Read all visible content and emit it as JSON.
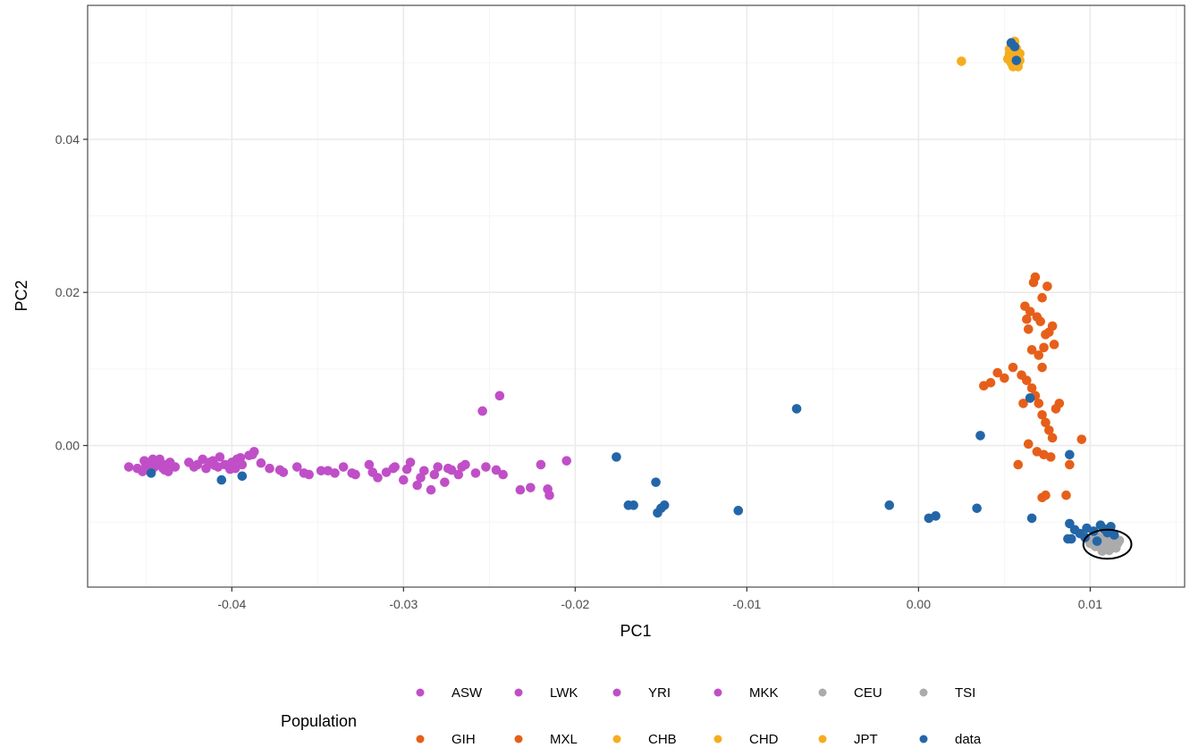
{
  "chart_data": {
    "type": "scatter",
    "title": "",
    "xlabel": "PC1",
    "ylabel": "PC2",
    "xlim": [
      -0.0484,
      0.0155
    ],
    "ylim": [
      -0.0185,
      0.0575
    ],
    "x_ticks": [
      -0.04,
      -0.03,
      -0.02,
      -0.01,
      0.0,
      0.01
    ],
    "x_tick_labels": [
      "-0.04",
      "-0.03",
      "-0.02",
      "-0.01",
      "0.00",
      "0.01"
    ],
    "x_minor_ticks": [
      -0.045,
      -0.035,
      -0.025,
      -0.015,
      -0.005,
      0.005,
      0.015
    ],
    "y_ticks": [
      0.0,
      0.02,
      0.04
    ],
    "y_tick_labels": [
      "0.00",
      "0.02",
      "0.04"
    ],
    "y_minor_ticks": [
      -0.01,
      0.01,
      0.03,
      0.05
    ],
    "grid": true,
    "legend_title": "Population",
    "legend_position": "bottom",
    "legend_rows": [
      [
        "ASW",
        "LWK",
        "YRI",
        "MKK",
        "CEU",
        "TSI"
      ],
      [
        "GIH",
        "MXL",
        "CHB",
        "CHD",
        "JPT",
        "data"
      ]
    ],
    "colors": {
      "ASW": "#c04fc7",
      "LWK": "#c04fc7",
      "YRI": "#c04fc7",
      "MKK": "#c04fc7",
      "CEU": "#ababab",
      "TSI": "#ababab",
      "GIH": "#e65f1a",
      "MXL": "#e65f1a",
      "CHB": "#f5ad1e",
      "CHD": "#f5ad1e",
      "JPT": "#f5ad1e",
      "data": "#2366a8"
    },
    "series": [
      {
        "name": "YRI",
        "x": [
          -0.046,
          -0.0455,
          -0.045,
          -0.0448,
          -0.0445,
          -0.0442,
          -0.044,
          -0.0438,
          -0.0436,
          -0.0433,
          -0.0452,
          -0.0447,
          -0.0443,
          -0.0439,
          -0.0451,
          -0.0446,
          -0.0441,
          -0.0437
        ],
        "y": [
          -0.0028,
          -0.003,
          -0.0025,
          -0.0022,
          -0.0028,
          -0.0018,
          -0.003,
          -0.0025,
          -0.0022,
          -0.0028,
          -0.0034,
          -0.0034,
          -0.0024,
          -0.0032,
          -0.002,
          -0.0018,
          -0.0026,
          -0.0034
        ]
      },
      {
        "name": "LWK",
        "x": [
          -0.0425,
          -0.042,
          -0.0417,
          -0.0413,
          -0.041,
          -0.0407,
          -0.0404,
          -0.04,
          -0.0397,
          -0.0394,
          -0.039,
          -0.0387,
          -0.0383,
          -0.0422,
          -0.0415,
          -0.0408,
          -0.0401,
          -0.0395,
          -0.0388,
          -0.0411,
          -0.0398
        ],
        "y": [
          -0.0022,
          -0.0025,
          -0.0018,
          -0.0022,
          -0.0026,
          -0.0015,
          -0.0025,
          -0.0022,
          -0.0018,
          -0.0025,
          -0.0013,
          -0.0008,
          -0.0023,
          -0.0028,
          -0.003,
          -0.0028,
          -0.0031,
          -0.0016,
          -0.0012,
          -0.002,
          -0.003
        ]
      },
      {
        "name": "MKK",
        "x": [
          -0.0378,
          -0.037,
          -0.0362,
          -0.0355,
          -0.0348,
          -0.034,
          -0.0335,
          -0.0328,
          -0.032,
          -0.0315,
          -0.031,
          -0.0305,
          -0.03,
          -0.0296,
          -0.0292,
          -0.0288,
          -0.0284,
          -0.028,
          -0.0276,
          -0.0272,
          -0.0268,
          -0.0264,
          -0.0258,
          -0.0252,
          -0.0246,
          -0.0372,
          -0.0358,
          -0.0344,
          -0.033,
          -0.0318,
          -0.0306,
          -0.0298,
          -0.029,
          -0.0282,
          -0.0274,
          -0.0266
        ],
        "y": [
          -0.003,
          -0.0035,
          -0.0028,
          -0.0038,
          -0.0033,
          -0.0036,
          -0.0028,
          -0.0038,
          -0.0025,
          -0.0042,
          -0.0035,
          -0.0028,
          -0.0045,
          -0.0022,
          -0.0052,
          -0.0033,
          -0.0058,
          -0.0028,
          -0.0048,
          -0.0032,
          -0.0038,
          -0.0025,
          -0.0036,
          -0.0028,
          -0.0032,
          -0.0032,
          -0.0036,
          -0.0033,
          -0.0036,
          -0.0035,
          -0.003,
          -0.0031,
          -0.0042,
          -0.0038,
          -0.003,
          -0.0028
        ]
      },
      {
        "name": "ASW",
        "x": [
          -0.0254,
          -0.0244,
          -0.0232,
          -0.0226,
          -0.022,
          -0.0216,
          -0.0215,
          -0.0205,
          -0.0242
        ],
        "y": [
          0.0045,
          0.0065,
          -0.0058,
          -0.0055,
          -0.0025,
          -0.0057,
          -0.0065,
          -0.002,
          -0.0038
        ]
      },
      {
        "name": "CHB",
        "x": [
          0.0052,
          0.0054,
          0.0055,
          0.0056,
          0.0057,
          0.0058,
          0.0059,
          0.0053,
          0.0055,
          0.0057,
          0.0058,
          0.0056
        ],
        "y": [
          0.0505,
          0.051,
          0.0502,
          0.0515,
          0.0498,
          0.0508,
          0.0512,
          0.0518,
          0.0522,
          0.0505,
          0.0495,
          0.0528
        ]
      },
      {
        "name": "CHD",
        "x": [
          0.0053,
          0.0054,
          0.0056,
          0.0057,
          0.0059,
          0.0055
        ],
        "y": [
          0.0512,
          0.05,
          0.0507,
          0.0519,
          0.0503,
          0.0495
        ]
      },
      {
        "name": "JPT",
        "x": [
          0.0025,
          0.0054,
          0.0056,
          0.0058,
          0.0055,
          0.0057
        ],
        "y": [
          0.0502,
          0.0508,
          0.0498,
          0.051,
          0.052,
          0.0513
        ]
      },
      {
        "name": "GIH",
        "x": [
          0.0068,
          0.0067,
          0.0075,
          0.0072,
          0.0062,
          0.0065,
          0.0078,
          0.0063,
          0.0069,
          0.0071,
          0.0076,
          0.0074,
          0.0079,
          0.0073,
          0.0064,
          0.007,
          0.0066,
          0.0072
        ],
        "y": [
          0.022,
          0.0213,
          0.0208,
          0.0193,
          0.0182,
          0.0175,
          0.0156,
          0.0165,
          0.0168,
          0.0162,
          0.0148,
          0.0145,
          0.0132,
          0.0128,
          0.0152,
          0.0118,
          0.0125,
          0.0102
        ]
      },
      {
        "name": "MXL",
        "x": [
          0.0038,
          0.0042,
          0.0046,
          0.005,
          0.0055,
          0.006,
          0.0063,
          0.0066,
          0.0068,
          0.007,
          0.0072,
          0.0074,
          0.0076,
          0.0078,
          0.008,
          0.0082,
          0.0065,
          0.0061,
          0.0058,
          0.0064,
          0.0069,
          0.0073,
          0.0077,
          0.0088,
          0.0095,
          0.0072,
          0.0074,
          0.0086
        ],
        "y": [
          0.0078,
          0.0082,
          0.0095,
          0.0088,
          0.0102,
          0.0092,
          0.0085,
          0.0075,
          0.0065,
          0.0055,
          0.004,
          0.003,
          0.002,
          0.001,
          0.0048,
          0.0055,
          0.0062,
          0.0055,
          -0.0025,
          0.0002,
          -0.0008,
          -0.0012,
          -0.0015,
          -0.0025,
          0.0008,
          -0.0068,
          -0.0065,
          -0.0065
        ]
      },
      {
        "name": "CEU",
        "x": [
          0.0098,
          0.0101,
          0.0104,
          0.0106,
          0.0108,
          0.011,
          0.0112,
          0.0114,
          0.0116,
          0.0103,
          0.0107,
          0.0111
        ],
        "y": [
          -0.0122,
          -0.0125,
          -0.0118,
          -0.013,
          -0.012,
          -0.0135,
          -0.0125,
          -0.0132,
          -0.0128,
          -0.0132,
          -0.0138,
          -0.0116
        ]
      },
      {
        "name": "TSI",
        "x": [
          0.01,
          0.0105,
          0.0109,
          0.0113,
          0.0115,
          0.0102,
          0.0107,
          0.0111,
          0.0117
        ],
        "y": [
          -0.0128,
          -0.0124,
          -0.0127,
          -0.0121,
          -0.0134,
          -0.0118,
          -0.0133,
          -0.0137,
          -0.0124
        ]
      },
      {
        "name": "data",
        "x": [
          -0.0447,
          -0.0406,
          -0.0394,
          -0.0176,
          -0.0169,
          -0.0166,
          -0.0153,
          -0.0152,
          -0.015,
          -0.0148,
          -0.0105,
          -0.0071,
          -0.0017,
          0.0006,
          0.001,
          0.0034,
          0.0036,
          0.0066,
          0.0088,
          0.0065,
          0.0088,
          0.0091,
          0.0094,
          0.0098,
          0.0102,
          0.0106,
          0.011,
          0.0112,
          0.0114,
          0.0089,
          0.0054,
          0.0056,
          0.0057,
          0.0087,
          0.0097,
          0.0104,
          0.0108
        ],
        "y": [
          -0.0036,
          -0.0045,
          -0.004,
          -0.0015,
          -0.0078,
          -0.0078,
          -0.0048,
          -0.0088,
          -0.0082,
          -0.0078,
          -0.0085,
          0.0048,
          -0.0078,
          -0.0095,
          -0.0092,
          -0.0082,
          0.0013,
          -0.0095,
          -0.0012,
          0.0062,
          -0.0102,
          -0.011,
          -0.0115,
          -0.0108,
          -0.0112,
          -0.0104,
          -0.0114,
          -0.0106,
          -0.0117,
          -0.0122,
          0.0526,
          0.0521,
          0.0503,
          -0.0122,
          -0.012,
          -0.0125,
          -0.0109
        ]
      }
    ],
    "ellipse": {
      "cx": 0.011,
      "cy": -0.0129,
      "rx": 0.0014,
      "ry": 0.0019,
      "stroke": "#000000"
    },
    "panel_border": "#4d4d4d",
    "grid_major": "#ebebeb",
    "grid_minor": "#f5f5f5"
  }
}
